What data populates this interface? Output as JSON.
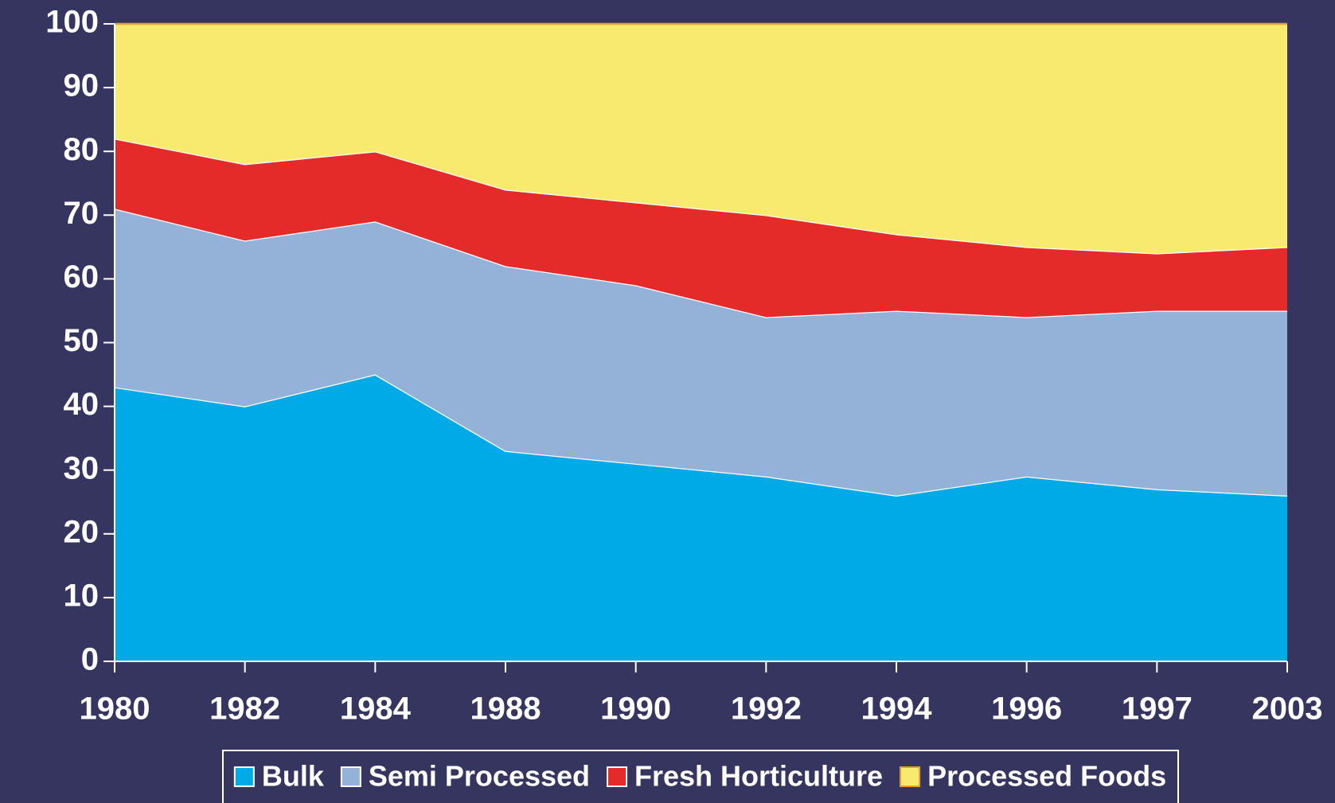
{
  "chart_data": {
    "type": "stacked_area",
    "categories": [
      "1980",
      "1982",
      "1984",
      "1988",
      "1990",
      "1992",
      "1994",
      "1996",
      "1997",
      "2003"
    ],
    "series": [
      {
        "name": "Bulk",
        "color": "#00aae6",
        "values": [
          43,
          40,
          45,
          33,
          31,
          29,
          26,
          29,
          27,
          26
        ]
      },
      {
        "name": "Semi Processed",
        "color": "#94b1d8",
        "values": [
          28,
          26,
          24,
          29,
          28,
          25,
          29,
          25,
          28,
          29
        ]
      },
      {
        "name": "Fresh Horticulture",
        "color": "#e52a2a",
        "values": [
          11,
          12,
          11,
          12,
          13,
          16,
          12,
          11,
          9,
          10
        ]
      },
      {
        "name": "Processed Foods",
        "color": "#f7ea6e",
        "values": [
          18,
          22,
          20,
          26,
          28,
          30,
          33,
          35,
          36,
          35
        ]
      }
    ],
    "ylim": [
      0,
      100
    ],
    "yticks": [
      0,
      10,
      20,
      30,
      40,
      50,
      60,
      70,
      80,
      90,
      100
    ],
    "legend": "bottom"
  }
}
